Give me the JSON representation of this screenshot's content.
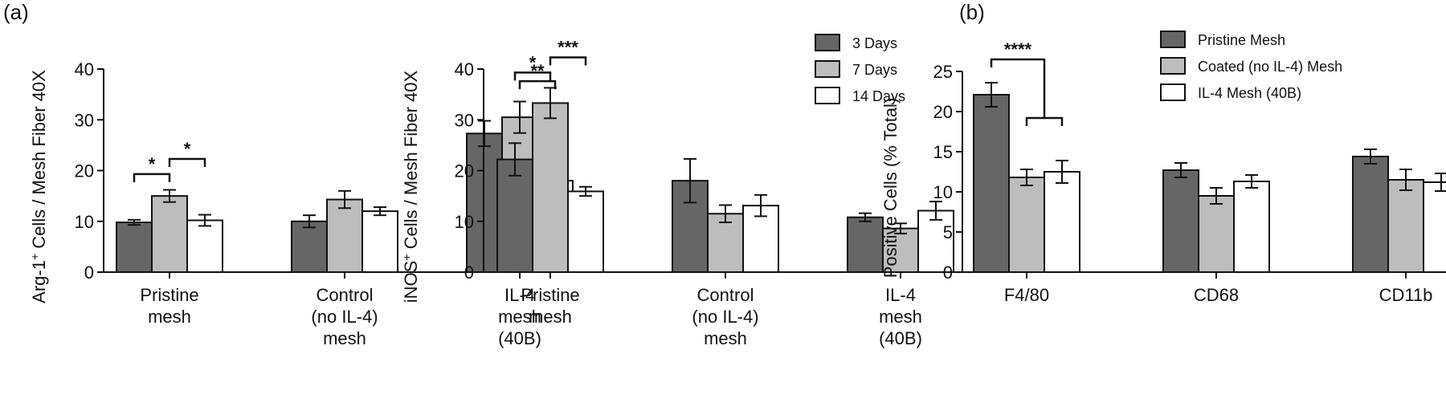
{
  "panel_labels": [
    "(a)",
    "(b)"
  ],
  "legend_a": [
    {
      "label": "3 Days",
      "color": "#666666"
    },
    {
      "label": "7 Days",
      "color": "#bdbdbd"
    },
    {
      "label": "14 Days",
      "color": "#ffffff"
    }
  ],
  "legend_b": [
    {
      "label": "Pristine Mesh",
      "color": "#666666"
    },
    {
      "label": "Coated (no IL-4) Mesh",
      "color": "#bdbdbd"
    },
    {
      "label": "IL-4 Mesh (40B)",
      "color": "#ffffff"
    }
  ],
  "chart_data": [
    {
      "type": "bar",
      "ylabel_html": "Arg-1⁺ Cells / Mesh Fiber 40X",
      "ylabel_parts": [
        "Arg-1",
        "+",
        " Cells / Mesh Fiber 40X"
      ],
      "ylim": [
        0,
        40
      ],
      "yticks": [
        "0",
        "10",
        "20",
        "30",
        "40"
      ],
      "categories": [
        [
          "Pristine",
          "mesh"
        ],
        [
          "Control",
          "(no IL-4)",
          "mesh"
        ],
        [
          "IL-4",
          "mesh",
          "(40B)"
        ]
      ],
      "series": [
        {
          "name": "3 Days",
          "values": [
            9.8,
            10.0,
            27.3
          ],
          "errors": [
            0.5,
            1.2,
            2.5
          ]
        },
        {
          "name": "7 Days",
          "values": [
            15.0,
            14.3,
            30.5
          ],
          "errors": [
            1.2,
            1.7,
            3.1
          ]
        },
        {
          "name": "14 Days",
          "values": [
            10.2,
            12.0,
            18.0
          ],
          "errors": [
            1.1,
            0.8,
            1.3
          ]
        }
      ],
      "significance": [
        {
          "label": "*",
          "from": [
            0,
            0
          ],
          "to": [
            0,
            1
          ],
          "y": 19.3
        },
        {
          "label": "*",
          "from": [
            0,
            1
          ],
          "to": [
            0,
            2
          ],
          "y": 22.3
        },
        {
          "label": "**",
          "from": [
            2,
            1
          ],
          "to": [
            2,
            2
          ],
          "y": 37.6
        }
      ]
    },
    {
      "type": "bar",
      "ylabel_parts": [
        "iNOS",
        "+",
        " Cells / Mesh Fiber 40X"
      ],
      "ylim": [
        0,
        40
      ],
      "yticks": [
        "0",
        "10",
        "20",
        "30",
        "40"
      ],
      "categories": [
        [
          "Pristine",
          "mesh"
        ],
        [
          "Control",
          "(no IL-4)",
          "mesh"
        ],
        [
          "IL-4",
          "mesh",
          "(40B)"
        ]
      ],
      "series": [
        {
          "name": "3 Days",
          "values": [
            22.2,
            18.0,
            10.8
          ],
          "errors": [
            3.2,
            4.3,
            0.8
          ]
        },
        {
          "name": "7 Days",
          "values": [
            33.3,
            11.5,
            8.6
          ],
          "errors": [
            3.0,
            1.7,
            1.0
          ]
        },
        {
          "name": "14 Days",
          "values": [
            15.9,
            13.1,
            12.1
          ],
          "errors": [
            0.9,
            2.1,
            1.8
          ]
        }
      ],
      "significance": [
        {
          "label": "*",
          "from": [
            0,
            0
          ],
          "to": [
            0,
            1
          ],
          "y": 39.3
        },
        {
          "label": "***",
          "from": [
            0,
            1
          ],
          "to": [
            0,
            2
          ],
          "y": 42.3
        }
      ]
    },
    {
      "type": "bar",
      "ylabel_parts": [
        "Positive Cells (% Total)"
      ],
      "ylim": [
        0,
        25
      ],
      "yticks": [
        "0",
        "5",
        "10",
        "15",
        "20",
        "25"
      ],
      "categories": [
        [
          "F4/80"
        ],
        [
          "CD68"
        ],
        [
          "CD11b"
        ]
      ],
      "series": [
        {
          "name": "Pristine Mesh",
          "values": [
            22.1,
            12.7,
            14.4
          ],
          "errors": [
            1.5,
            0.9,
            0.9
          ]
        },
        {
          "name": "Coated (no IL-4) Mesh",
          "values": [
            11.8,
            9.5,
            11.5
          ],
          "errors": [
            1.0,
            1.0,
            1.3
          ]
        },
        {
          "name": "IL-4 Mesh (40B)",
          "values": [
            12.5,
            11.3,
            11.2
          ],
          "errors": [
            1.4,
            0.8,
            1.1
          ]
        }
      ],
      "significance": [
        {
          "label": "****",
          "bracket": "nested",
          "left": [
            0,
            0
          ],
          "inner_from": [
            0,
            1
          ],
          "inner_to": [
            0,
            2
          ],
          "y_top": 26.5,
          "y_inner": 19.2
        }
      ]
    }
  ]
}
